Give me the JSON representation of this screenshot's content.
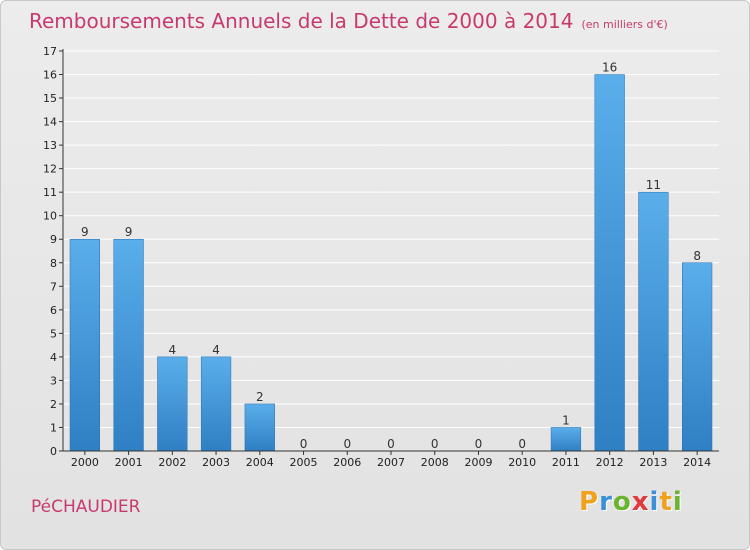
{
  "header": {
    "title": "Remboursements Annuels de la Dette de 2000 à 2014",
    "unit": "(en milliers d'€)"
  },
  "footer": {
    "commune": "PéCHAUDIER",
    "logo_letters": [
      "P",
      "r",
      "o",
      "x",
      "i",
      "t",
      "i"
    ],
    "logo_colors": [
      "#f0a21e",
      "#3a8fd8",
      "#6ab42e",
      "#e03a3a",
      "#3a8fd8",
      "#f0a21e",
      "#6ab42e"
    ]
  },
  "colors": {
    "bar_top": "#5aaeea",
    "bar_bottom": "#2f7fc4",
    "axis": "#333333",
    "grid": "#ffffff",
    "title": "#c83a6e"
  },
  "chart_data": {
    "type": "bar",
    "categories": [
      "2000",
      "2001",
      "2002",
      "2003",
      "2004",
      "2005",
      "2006",
      "2007",
      "2008",
      "2009",
      "2010",
      "2011",
      "2012",
      "2013",
      "2014"
    ],
    "values": [
      9,
      9,
      4,
      4,
      2,
      0,
      0,
      0,
      0,
      0,
      0,
      1,
      16,
      11,
      8
    ],
    "title": "Remboursements Annuels de la Dette de 2000 à 2014",
    "xlabel": "",
    "ylabel": "",
    "ylim": [
      0,
      17
    ],
    "yticks": [
      0,
      1,
      2,
      3,
      4,
      5,
      6,
      7,
      8,
      9,
      10,
      11,
      12,
      13,
      14,
      15,
      16,
      17
    ],
    "grid": true,
    "legend": "none"
  }
}
